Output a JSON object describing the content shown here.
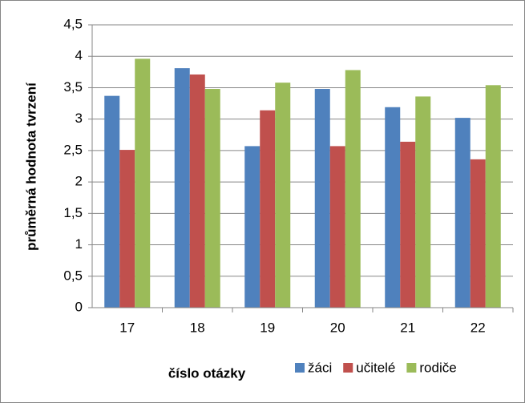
{
  "chart_data": {
    "type": "bar",
    "y_label": "průměrná hodnota tvrzení",
    "x_label": "číslo otázky",
    "categories": [
      "17",
      "18",
      "19",
      "20",
      "21",
      "22"
    ],
    "series": [
      {
        "name": "žáci",
        "color": "#4f81bd",
        "values": [
          3.37,
          3.81,
          2.57,
          3.48,
          3.19,
          3.02
        ]
      },
      {
        "name": "učitelé",
        "color": "#c0504d",
        "values": [
          2.51,
          3.71,
          3.14,
          2.57,
          2.64,
          2.36
        ]
      },
      {
        "name": "rodiče",
        "color": "#9bbb59",
        "values": [
          3.96,
          3.48,
          3.58,
          3.78,
          3.36,
          3.54
        ]
      }
    ],
    "ylim": [
      0,
      4.5
    ],
    "yticks": [
      0,
      {
        "value": 0.5,
        "label": "0,5"
      },
      1,
      {
        "value": 1.5,
        "label": "1,5"
      },
      2,
      {
        "value": 2.5,
        "label": "2,5"
      },
      3,
      {
        "value": 3.5,
        "label": "3,5"
      },
      4,
      {
        "value": 4.5,
        "label": "4,5"
      }
    ],
    "grid": true,
    "legend": "bottom"
  }
}
